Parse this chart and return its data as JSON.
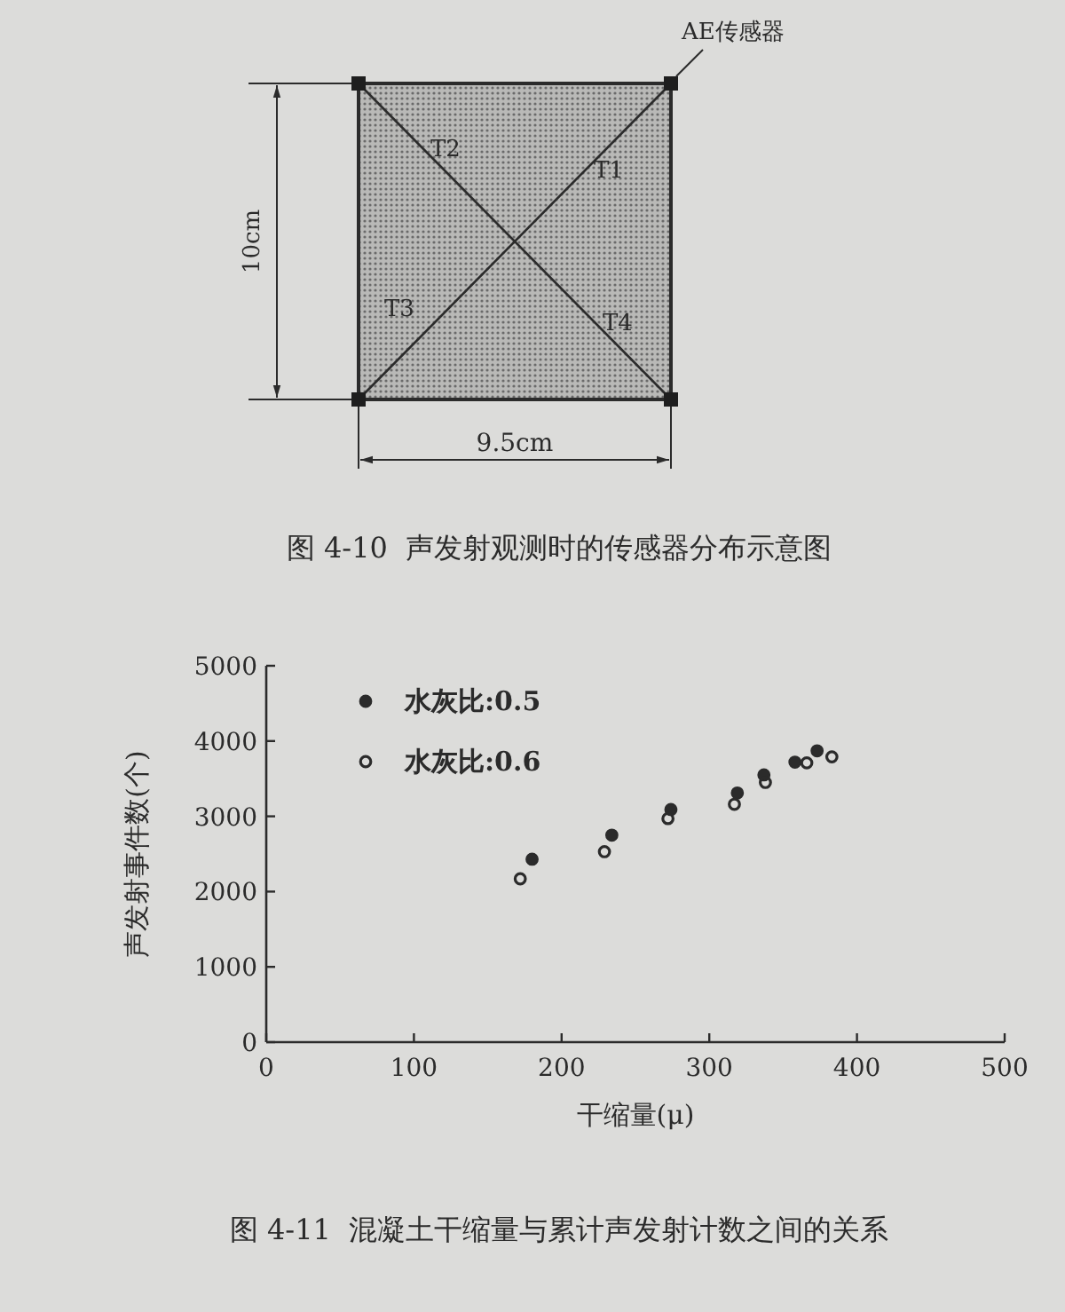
{
  "chart_data": [
    {
      "type": "other",
      "title": "图 4-10  声发射观测时的传感器分布示意图",
      "annotations": [
        "AE传感器",
        "T1",
        "T2",
        "T3",
        "T4",
        "10cm",
        "9.5cm"
      ]
    },
    {
      "type": "scatter",
      "title": "图 4-11  混凝土干缩量与累计声发射计数之间的关系",
      "xlabel": "干缩量(μ)",
      "ylabel": "声发射事件数(个)",
      "xlim": [
        0,
        500
      ],
      "ylim": [
        0,
        5000
      ],
      "xticks": [
        0,
        100,
        200,
        300,
        400,
        500
      ],
      "yticks": [
        0,
        1000,
        2000,
        3000,
        4000,
        5000
      ],
      "legend": "top left",
      "marker": "circle",
      "series": [
        {
          "name": "水灰比:0.5",
          "color": "#2b2b2b",
          "x": [
            180,
            234,
            274,
            319,
            337,
            358,
            373
          ],
          "values": [
            2430,
            2750,
            3090,
            3310,
            3550,
            3720,
            3870
          ]
        },
        {
          "name": "水灰比:0.6",
          "color": "#2b2b2b",
          "marker": "circle-open",
          "x": [
            172,
            229,
            272,
            317,
            338,
            366,
            383
          ],
          "values": [
            2170,
            2530,
            2970,
            3160,
            3450,
            3710,
            3790
          ]
        }
      ]
    }
  ]
}
